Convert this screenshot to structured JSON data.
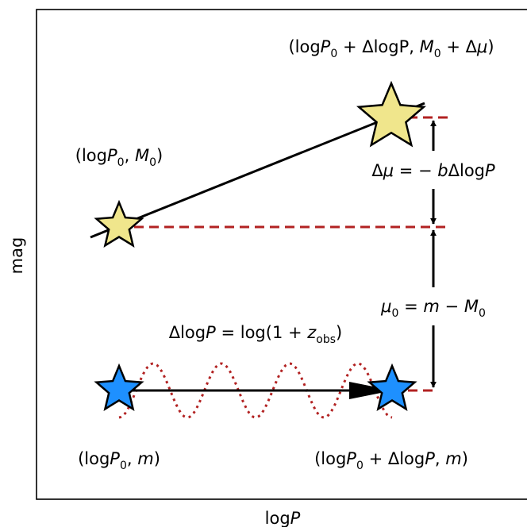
{
  "axes": {
    "xlabel": "logP",
    "ylabel": "mag"
  },
  "labels": {
    "origin_abs": "(logP₀, M₀)",
    "shifted_abs": "(logP₀ + ΔlogP, M₀ + Δμ)",
    "delta_mu": "Δμ = −bΔlogP",
    "distance_modulus": "μ₀ = m − M₀",
    "delta_logp": "ΔlogP = log(1 + z_obs)",
    "origin_app": "(logP₀, m)",
    "shifted_app": "(logP₀ + ΔlogP, m)"
  },
  "colors": {
    "star_absolute": "#f0e68c",
    "star_apparent": "#1e90ff",
    "dashed_line": "#b22222",
    "wave": "#b22222"
  }
}
